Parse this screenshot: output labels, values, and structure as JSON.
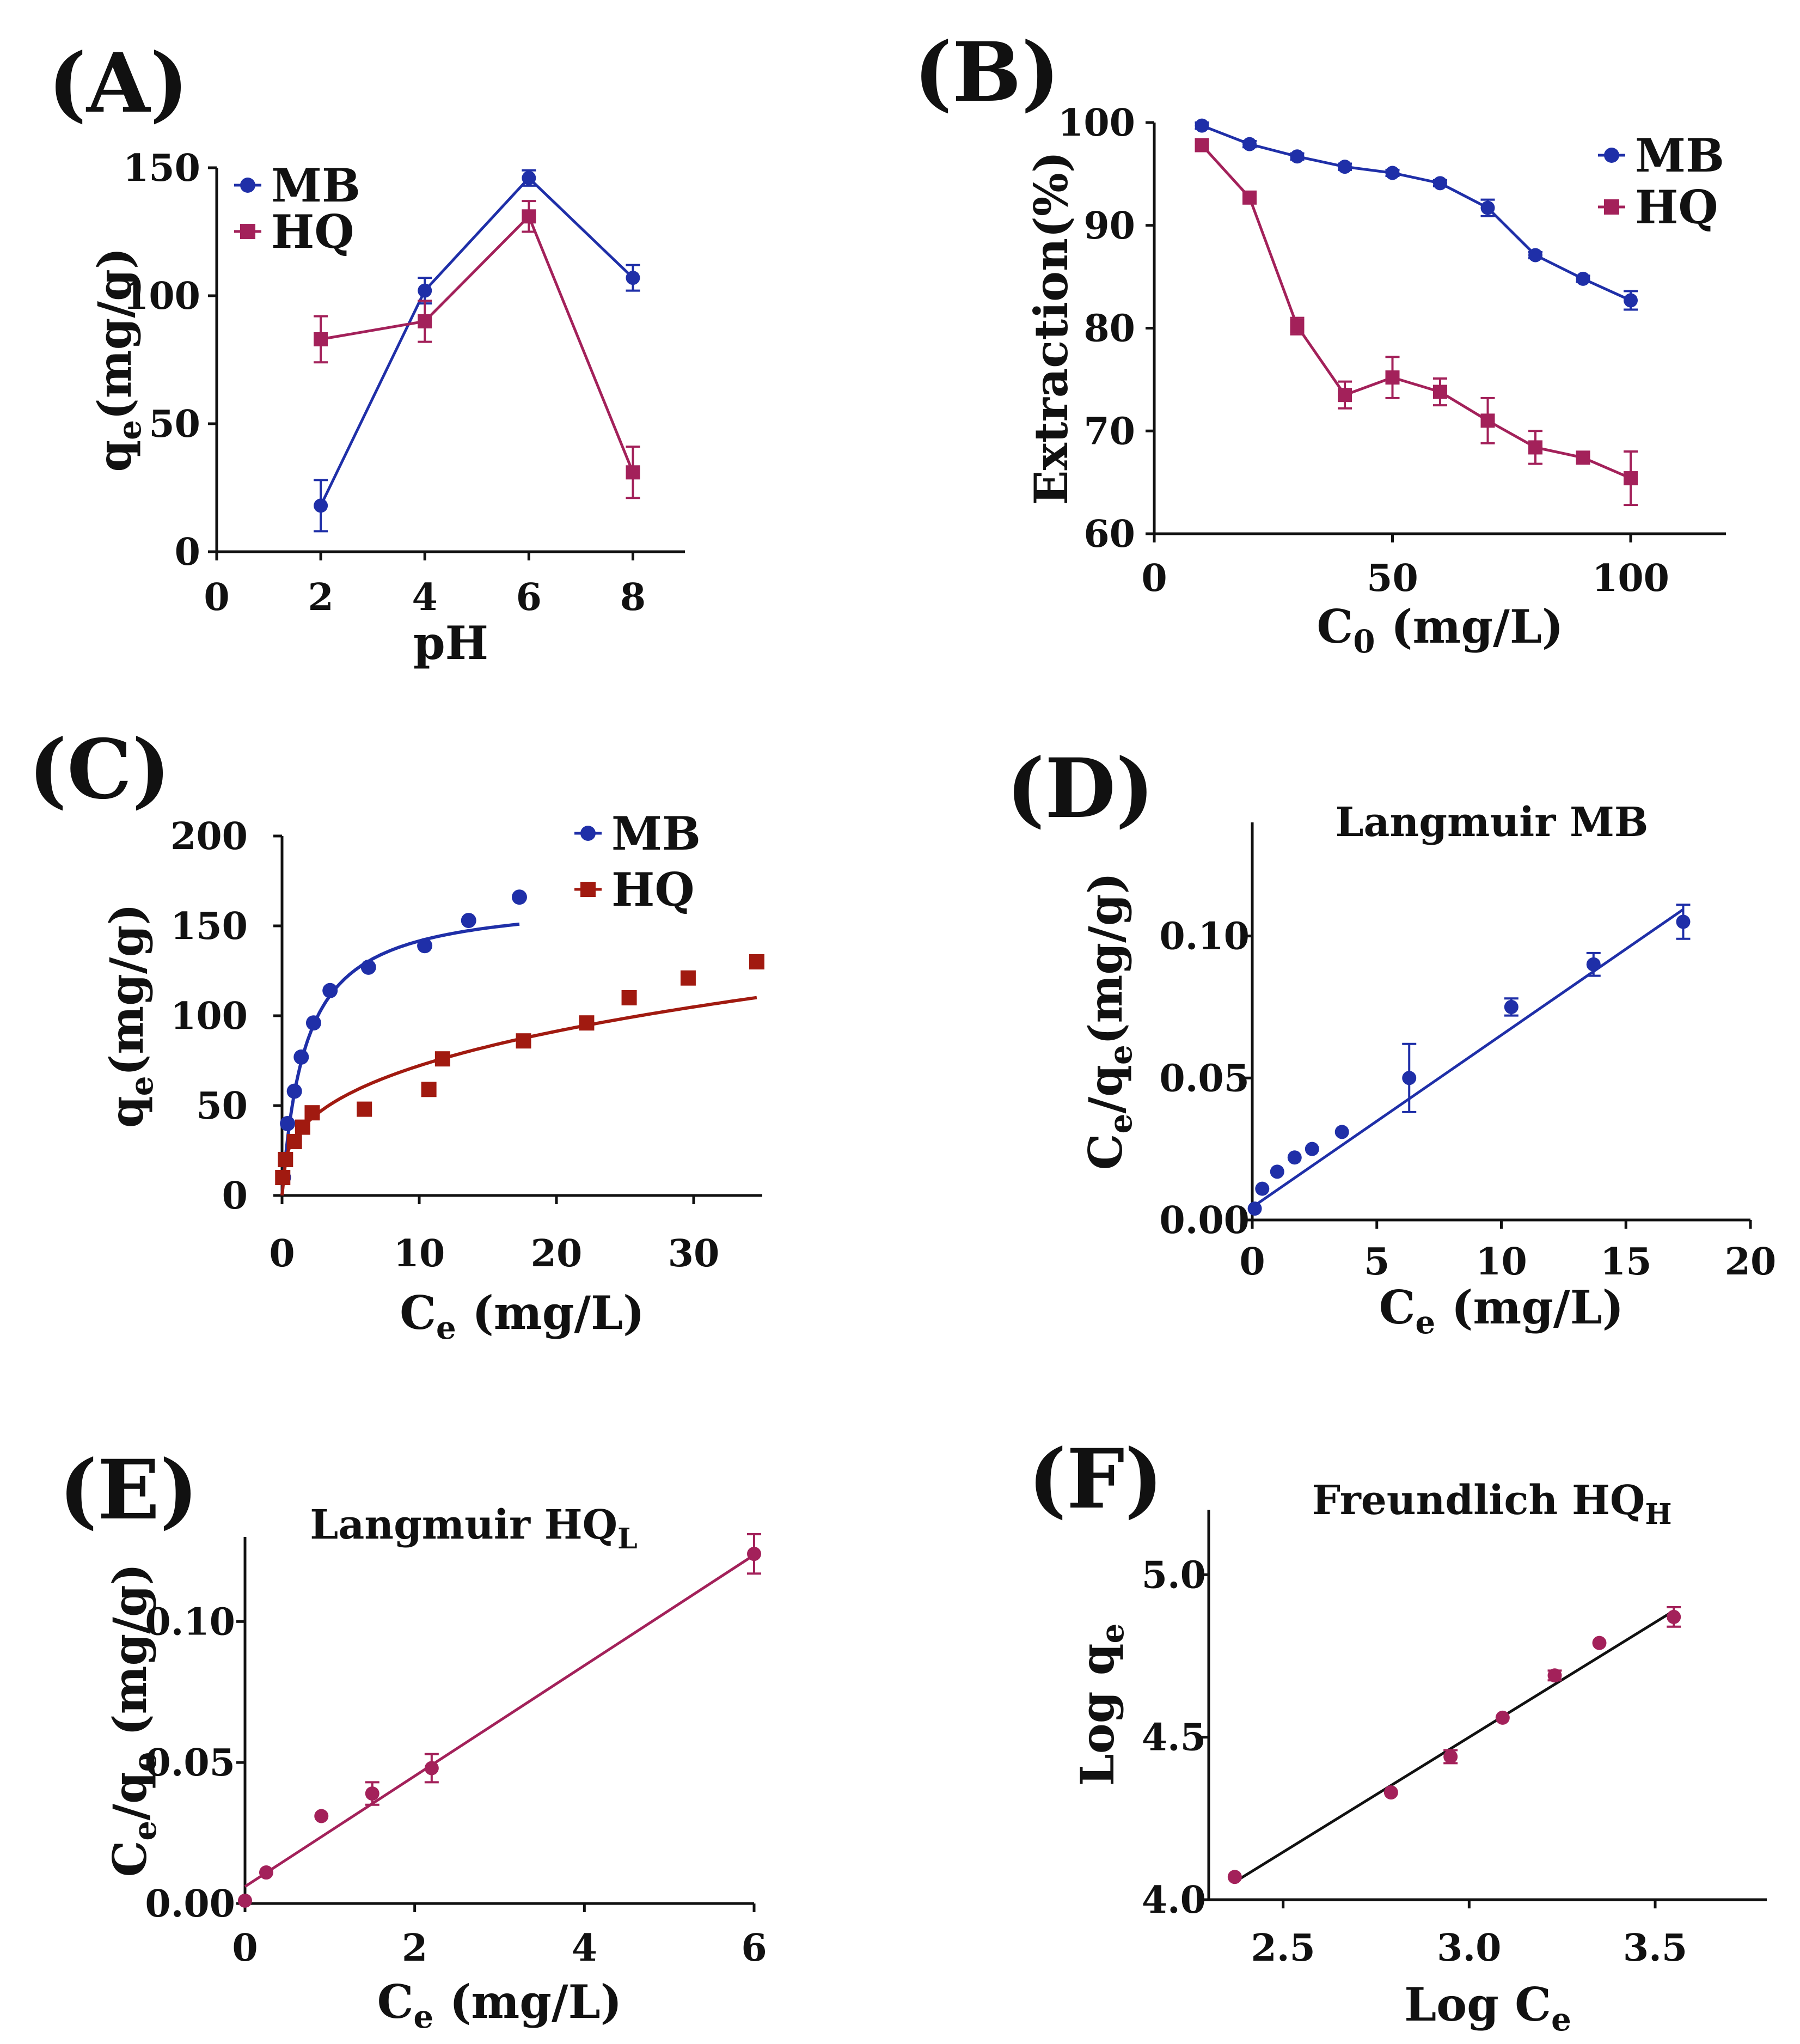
{
  "colors": {
    "mb": "#1f2fa8",
    "hq": "#a3215a",
    "hq_c": "#a11a10",
    "black": "#111111"
  },
  "chart_data": [
    {
      "type": "line",
      "panel_label": "(A)",
      "xlabel": "pH",
      "ylabel": {
        "main": "q",
        "sub": "e",
        "rest": "(mg/g)"
      },
      "xlim": [
        0,
        9
      ],
      "ylim": [
        0,
        150
      ],
      "xticks": [
        "0",
        "2",
        "4",
        "6",
        "8"
      ],
      "yticks": [
        "0",
        "50",
        "100",
        "150"
      ],
      "legend": [
        "MB",
        "HQ"
      ],
      "series": [
        {
          "name": "MB",
          "x": [
            2,
            4,
            6,
            8
          ],
          "y": [
            18,
            102,
            146,
            107
          ],
          "err": [
            10,
            5,
            3,
            5
          ]
        },
        {
          "name": "HQ",
          "x": [
            2,
            4,
            6,
            8
          ],
          "y": [
            83,
            90,
            131,
            31
          ],
          "err": [
            9,
            8,
            6,
            10
          ]
        }
      ]
    },
    {
      "type": "line",
      "panel_label": "(B)",
      "xlabel": {
        "main": "C",
        "sub": "0",
        "rest": " (mg/L)"
      },
      "ylabel": "Extraction(%)",
      "xlim": [
        0,
        120
      ],
      "ylim": [
        60,
        100
      ],
      "xticks": [
        "0",
        "50",
        "100"
      ],
      "yticks": [
        "60",
        "70",
        "80",
        "90",
        "100"
      ],
      "legend": [
        "MB",
        "HQ"
      ],
      "series": [
        {
          "name": "MB",
          "x": [
            10,
            20,
            30,
            40,
            50,
            60,
            70,
            80,
            90,
            100
          ],
          "y": [
            99.7,
            97.9,
            96.7,
            95.7,
            95.1,
            94.1,
            91.7,
            87.1,
            84.8,
            82.7
          ],
          "err": [
            0.3,
            0.3,
            0.3,
            0.3,
            0.3,
            0.3,
            0.8,
            0.3,
            0.3,
            0.9
          ]
        },
        {
          "name": "HQ",
          "x": [
            10,
            20,
            30,
            40,
            50,
            60,
            70,
            80,
            90,
            100
          ],
          "y": [
            97.8,
            92.7,
            80.2,
            73.5,
            75.2,
            73.8,
            71.0,
            68.4,
            67.4,
            65.4
          ],
          "err": [
            0.3,
            0.4,
            0.8,
            1.3,
            2.0,
            1.3,
            2.2,
            1.6,
            0.4,
            2.6
          ]
        }
      ]
    },
    {
      "type": "scatter",
      "panel_label": "(C)",
      "xlabel": {
        "main": "C",
        "sub": "e",
        "rest": " (mg/L)"
      },
      "ylabel": {
        "main": "q",
        "sub": "e",
        "rest": "(mg/g)"
      },
      "xlim": [
        0,
        35
      ],
      "ylim": [
        0,
        200
      ],
      "xticks": [
        "0",
        "10",
        "20",
        "30"
      ],
      "yticks": [
        "0",
        "50",
        "100",
        "150",
        "200"
      ],
      "legend": [
        "MB",
        "HQ"
      ],
      "series": [
        {
          "name": "MB",
          "x": [
            0.1,
            0.4,
            0.9,
            1.4,
            2.3,
            3.5,
            6.3,
            10.4,
            13.6,
            17.3
          ],
          "y": [
            10,
            40,
            58,
            77,
            96,
            114,
            127,
            139,
            153,
            166
          ]
        },
        {
          "name": "HQ",
          "x": [
            0.05,
            0.25,
            0.9,
            1.5,
            2.2,
            6.0,
            10.7,
            11.7,
            17.6,
            22.2,
            25.3,
            29.6,
            34.6
          ],
          "y": [
            10,
            20,
            30,
            38,
            46,
            48,
            59,
            76,
            86,
            96,
            110,
            121,
            130
          ]
        }
      ],
      "fits": [
        {
          "name": "MB fit (Langmuir)",
          "qmax": 166,
          "KL": 0.58,
          "xrange": [
            0,
            17.3
          ]
        },
        {
          "name": "HQ fit (Freundlich)",
          "KF": 33,
          "inv_n": 0.34,
          "xrange": [
            0,
            34.6
          ]
        }
      ]
    },
    {
      "type": "scatter",
      "panel_label": "(D)",
      "title": "Langmuir MB",
      "xlabel": {
        "main": "C",
        "sub": "e",
        "rest": " (mg/L)"
      },
      "ylabel": {
        "main": "C",
        "sub": "e",
        "mid": "/q",
        "sub2": "e",
        "rest": "(mg/g)"
      },
      "xlim": [
        0,
        20
      ],
      "ylim": [
        0,
        0.14
      ],
      "xticks": [
        "0",
        "5",
        "10",
        "15",
        "20"
      ],
      "yticks": [
        "0.00",
        "0.05",
        "0.10"
      ],
      "series": [
        {
          "name": "MB",
          "x": [
            0.1,
            0.4,
            1.0,
            1.7,
            2.4,
            3.6,
            6.3,
            10.4,
            13.7,
            17.3
          ],
          "y": [
            0.004,
            0.011,
            0.017,
            0.022,
            0.025,
            0.031,
            0.05,
            0.075,
            0.09,
            0.105
          ],
          "err": [
            0,
            0,
            0,
            0,
            0,
            0,
            0.012,
            0.003,
            0.004,
            0.006
          ]
        }
      ],
      "fit": {
        "slope": 0.00606,
        "intercept": 0.0045,
        "xrange": [
          0,
          17.3
        ]
      }
    },
    {
      "type": "scatter",
      "panel_label": "(E)",
      "title": {
        "main": "Langmuir HQ",
        "sub": "L"
      },
      "xlabel": {
        "main": "C",
        "sub": "e",
        "rest": " (mg/L)"
      },
      "ylabel": {
        "main": "C",
        "sub": "e",
        "mid": "/q",
        "sub2": "e",
        "rest": " (mg/g)"
      },
      "xlim": [
        0,
        6
      ],
      "ylim": [
        0,
        0.13
      ],
      "xticks": [
        "0",
        "2",
        "4",
        "6"
      ],
      "yticks": [
        "0.00",
        "0.05",
        "0.10"
      ],
      "series": [
        {
          "name": "HQ",
          "x": [
            0.0,
            0.25,
            0.9,
            1.5,
            2.2,
            6.0
          ],
          "y": [
            0.001,
            0.011,
            0.031,
            0.039,
            0.048,
            0.124
          ],
          "err": [
            0,
            0,
            0,
            0.004,
            0.005,
            0.007
          ]
        }
      ],
      "fit": {
        "slope": 0.0196,
        "intercept": 0.006,
        "xrange": [
          0,
          6
        ]
      }
    },
    {
      "type": "scatter",
      "panel_label": "(F)",
      "title": {
        "main": "Freundlich HQ",
        "sub": "H"
      },
      "xlabel": {
        "main": "Log C",
        "sub": "e",
        "rest": ""
      },
      "ylabel": {
        "main": "Log q",
        "sub": "e",
        "rest": ""
      },
      "xlim": [
        2.3,
        3.8
      ],
      "ylim": [
        4.0,
        5.2
      ],
      "xticks": [
        "2.5",
        "3.0",
        "3.5"
      ],
      "yticks": [
        "4.0",
        "4.5",
        "5.0"
      ],
      "series": [
        {
          "name": "HQ",
          "x": [
            2.37,
            2.79,
            2.95,
            3.09,
            3.23,
            3.35,
            3.55
          ],
          "y": [
            4.07,
            4.33,
            4.44,
            4.56,
            4.69,
            4.79,
            4.87
          ],
          "err": [
            0,
            0,
            0.02,
            0,
            0.015,
            0,
            0.03
          ]
        }
      ],
      "fit": {
        "slope": 0.707,
        "intercept": 2.379,
        "xrange": [
          2.37,
          3.55
        ]
      }
    }
  ]
}
